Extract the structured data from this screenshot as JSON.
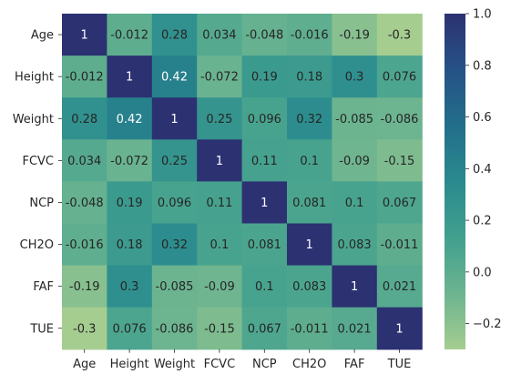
{
  "chart_data": {
    "type": "heatmap",
    "title": "",
    "xlabel": "",
    "ylabel": "",
    "row_labels": [
      "Age",
      "Height",
      "Weight",
      "FCVC",
      "NCP",
      "CH2O",
      "FAF",
      "TUE"
    ],
    "col_labels": [
      "Age",
      "Height",
      "Weight",
      "FCVC",
      "NCP",
      "CH2O",
      "FAF",
      "TUE"
    ],
    "values": [
      [
        1,
        -0.012,
        0.28,
        0.034,
        -0.048,
        -0.016,
        -0.19,
        -0.3
      ],
      [
        -0.012,
        1,
        0.42,
        -0.072,
        0.19,
        0.18,
        0.3,
        0.076
      ],
      [
        0.28,
        0.42,
        1,
        0.25,
        0.096,
        0.32,
        -0.085,
        -0.086
      ],
      [
        0.034,
        -0.072,
        0.25,
        1,
        0.11,
        0.1,
        -0.09,
        -0.15
      ],
      [
        -0.048,
        0.19,
        0.096,
        0.11,
        1,
        0.081,
        0.1,
        0.067
      ],
      [
        -0.016,
        0.18,
        0.32,
        0.1,
        0.081,
        1,
        0.083,
        -0.011
      ],
      [
        -0.19,
        0.3,
        -0.085,
        -0.09,
        0.1,
        0.083,
        1,
        0.021
      ],
      [
        -0.3,
        0.076,
        -0.086,
        -0.15,
        0.067,
        -0.011,
        0.021,
        1
      ]
    ],
    "annotations": [
      [
        "1",
        "-0.012",
        "0.28",
        "0.034",
        "-0.048",
        "-0.016",
        "-0.19",
        "-0.3"
      ],
      [
        "-0.012",
        "1",
        "0.42",
        "-0.072",
        "0.19",
        "0.18",
        "0.3",
        "0.076"
      ],
      [
        "0.28",
        "0.42",
        "1",
        "0.25",
        "0.096",
        "0.32",
        "-0.085",
        "-0.086"
      ],
      [
        "0.034",
        "-0.072",
        "0.25",
        "1",
        "0.11",
        "0.1",
        "-0.09",
        "-0.15"
      ],
      [
        "-0.048",
        "0.19",
        "0.096",
        "0.11",
        "1",
        "0.081",
        "0.1",
        "0.067"
      ],
      [
        "-0.016",
        "0.18",
        "0.32",
        "0.1",
        "0.081",
        "1",
        "0.083",
        "-0.011"
      ],
      [
        "-0.19",
        "0.3",
        "-0.085",
        "-0.09",
        "0.1",
        "0.083",
        "1",
        "0.021"
      ],
      [
        "-0.3",
        "0.076",
        "-0.086",
        "-0.15",
        "0.067",
        "-0.011",
        "0.021",
        "1"
      ]
    ],
    "colormap": "crest",
    "color_stops": [
      "#a5cd90",
      "#6cb490",
      "#41a08e",
      "#2a8a8e",
      "#226e8a",
      "#255286",
      "#2c3172"
    ],
    "vmin": -0.3,
    "vmax": 1,
    "colorbar": {
      "ticks": [
        -0.2,
        0.0,
        0.2,
        0.4,
        0.6,
        0.8,
        1.0
      ],
      "tick_labels": [
        "−0.2",
        "0.0",
        "0.2",
        "0.4",
        "0.6",
        "0.8",
        "1.0"
      ]
    }
  }
}
